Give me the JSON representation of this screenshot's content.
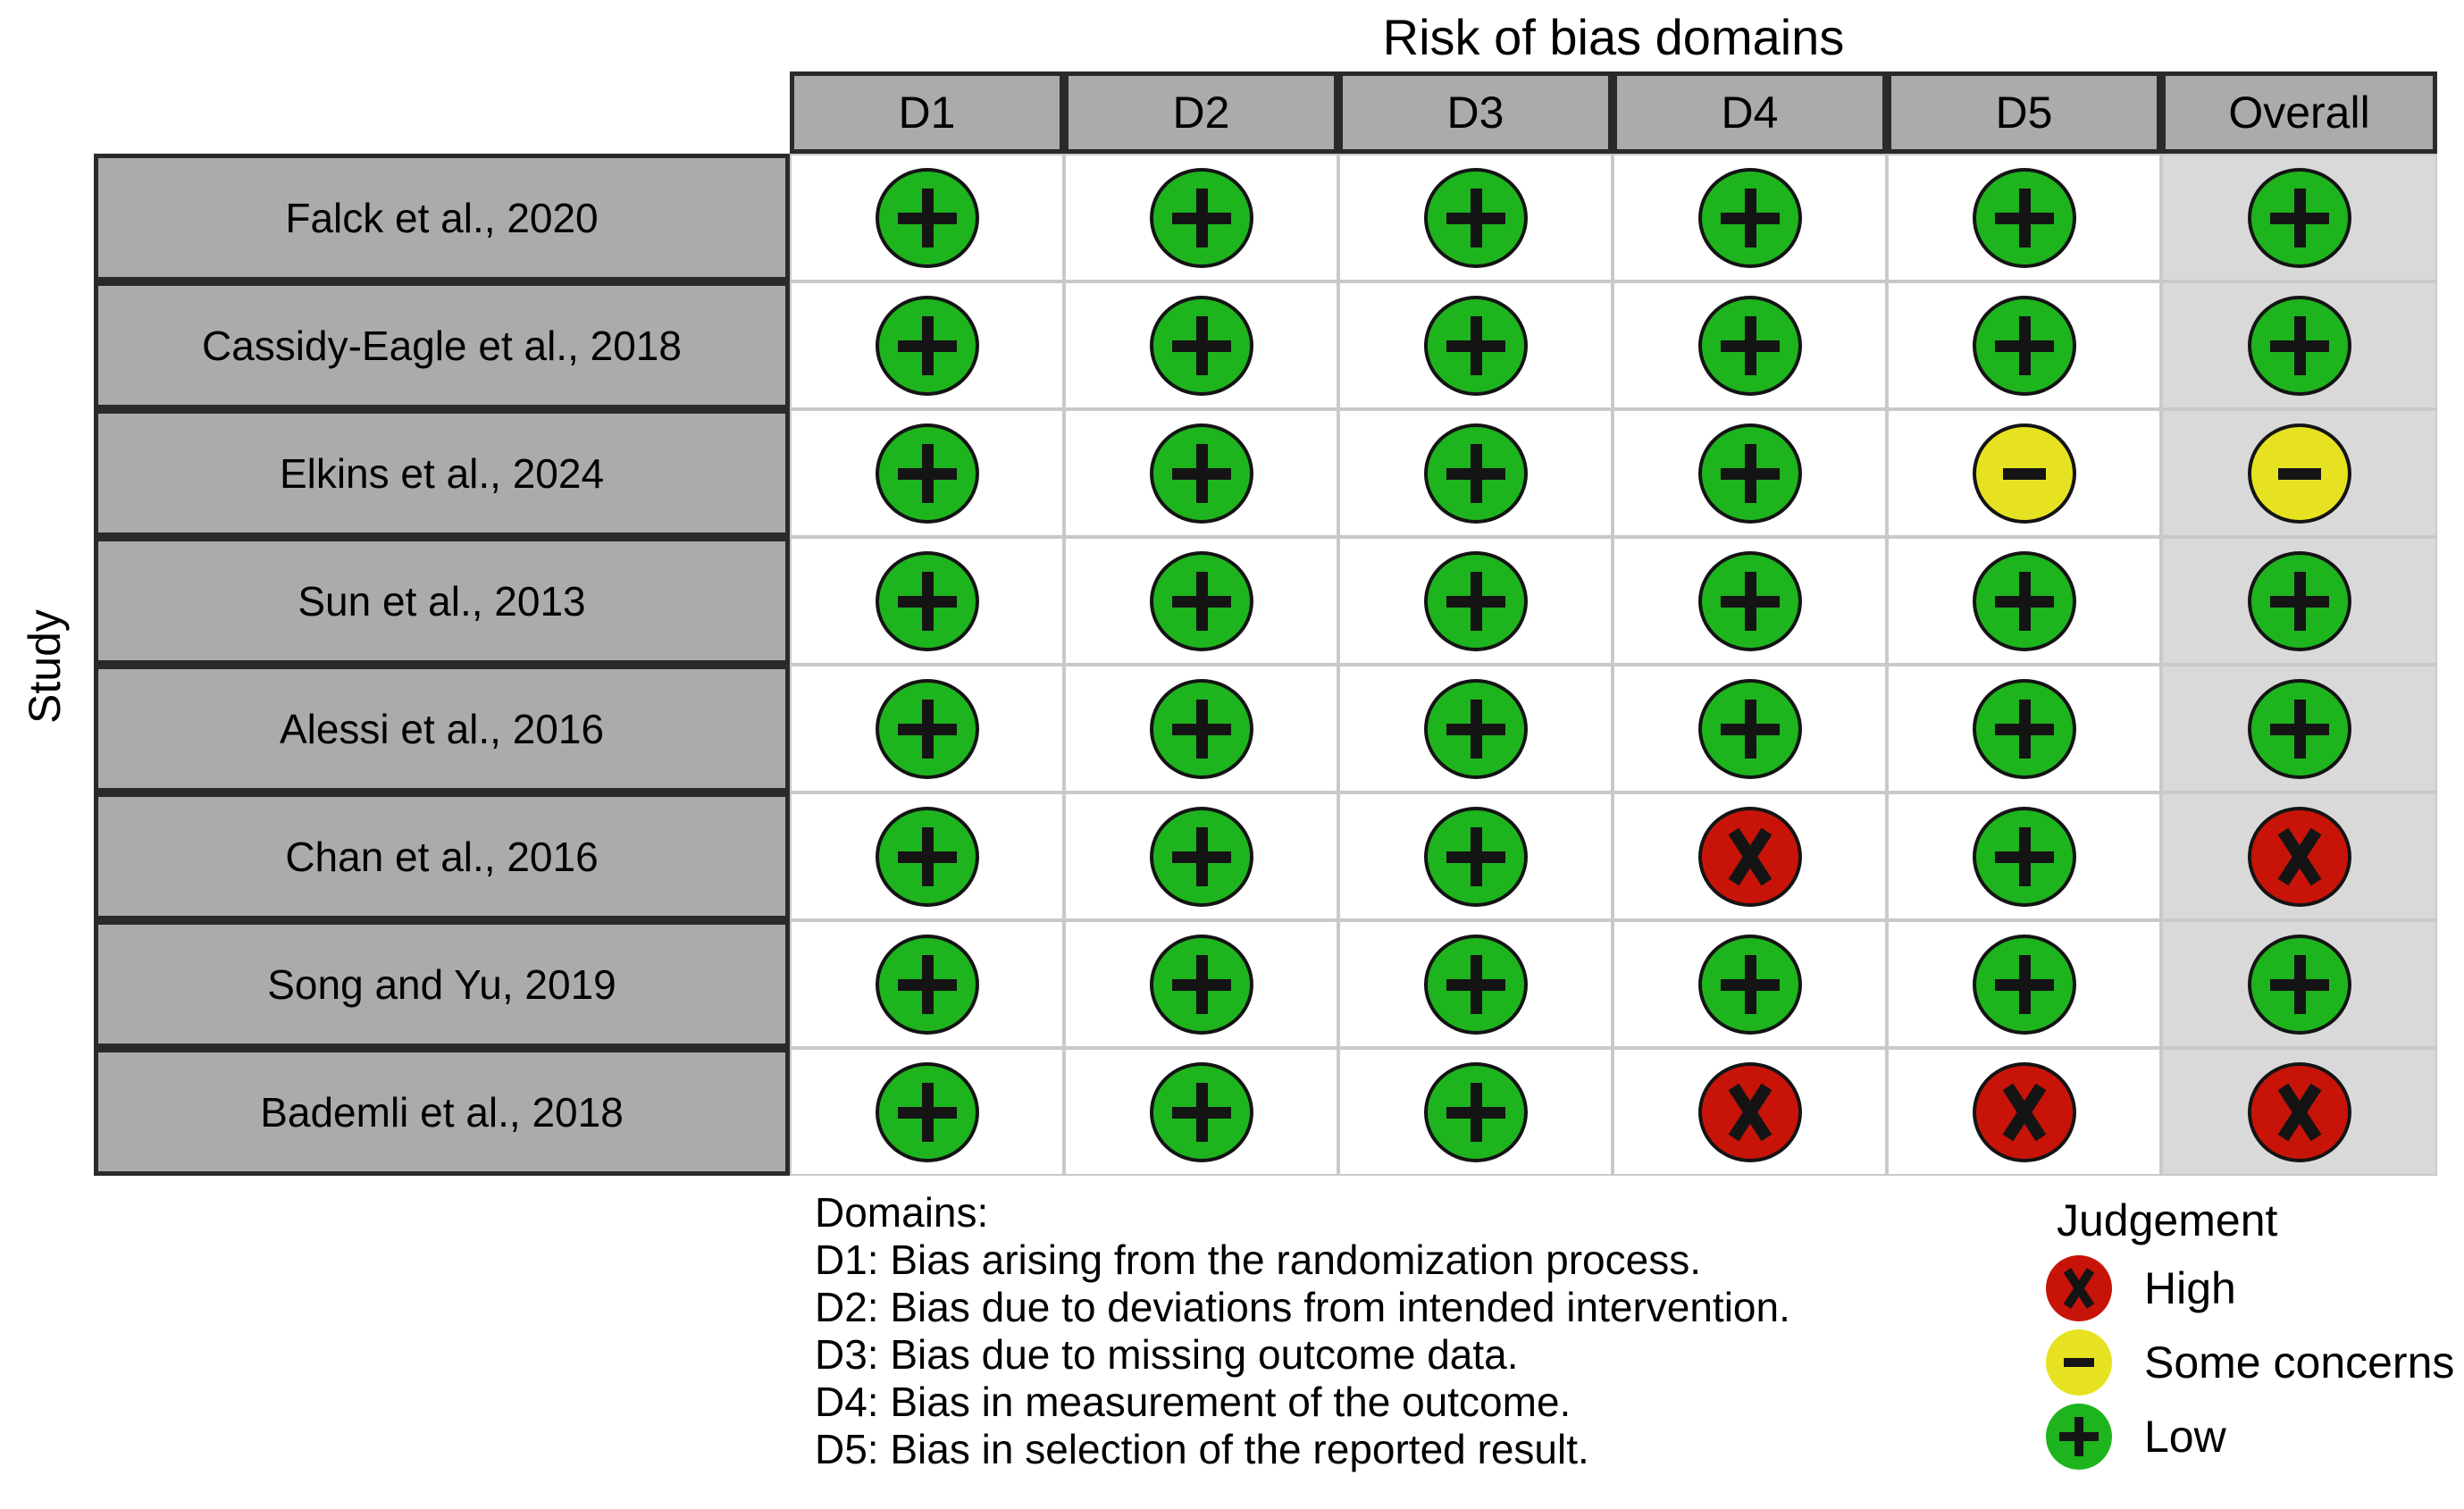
{
  "chart_data": {
    "type": "table",
    "title": "Risk of bias domains",
    "y_axis_label": "Study",
    "columns": [
      "D1",
      "D2",
      "D3",
      "D4",
      "D5",
      "Overall"
    ],
    "rows": [
      {
        "study": "Falck et al., 2020",
        "d1": "low",
        "d2": "low",
        "d3": "low",
        "d4": "low",
        "d5": "low",
        "overall": "low"
      },
      {
        "study": "Cassidy-Eagle et al., 2018",
        "d1": "low",
        "d2": "low",
        "d3": "low",
        "d4": "low",
        "d5": "low",
        "overall": "low"
      },
      {
        "study": "Elkins et al., 2024",
        "d1": "low",
        "d2": "low",
        "d3": "low",
        "d4": "low",
        "d5": "some-concerns",
        "overall": "some-concerns"
      },
      {
        "study": "Sun et al., 2013",
        "d1": "low",
        "d2": "low",
        "d3": "low",
        "d4": "low",
        "d5": "low",
        "overall": "low"
      },
      {
        "study": "Alessi et al., 2016",
        "d1": "low",
        "d2": "low",
        "d3": "low",
        "d4": "low",
        "d5": "low",
        "overall": "low"
      },
      {
        "study": "Chan et al., 2016",
        "d1": "low",
        "d2": "low",
        "d3": "low",
        "d4": "high",
        "d5": "low",
        "overall": "high"
      },
      {
        "study": "Song and Yu, 2019",
        "d1": "low",
        "d2": "low",
        "d3": "low",
        "d4": "low",
        "d5": "low",
        "overall": "low"
      },
      {
        "study": "Bademli et al., 2018",
        "d1": "low",
        "d2": "low",
        "d3": "low",
        "d4": "high",
        "d5": "high",
        "overall": "high"
      }
    ]
  },
  "notes": {
    "heading": "Domains:",
    "lines": [
      "D1: Bias arising from the randomization process.",
      "D2: Bias due to deviations from intended intervention.",
      "D3: Bias due to missing outcome data.",
      "D4: Bias in measurement of the outcome.",
      "D5: Bias in selection of the reported result."
    ]
  },
  "legend": {
    "title": "Judgement",
    "items": [
      {
        "judgement": "high",
        "symbol": "x",
        "label": "High"
      },
      {
        "judgement": "some-concerns",
        "symbol": "-",
        "label": "Some concerns"
      },
      {
        "judgement": "low",
        "symbol": "+",
        "label": "Low"
      }
    ]
  },
  "colors": {
    "low_green": "#1eb41e",
    "some_concerns_yellow": "#e7e221",
    "high_red": "#c81408",
    "header_gray": "#ababab",
    "overall_column_gray": "#d9d9d9",
    "dark_border": "#2a2a2a",
    "light_border": "#c9c9c9"
  }
}
